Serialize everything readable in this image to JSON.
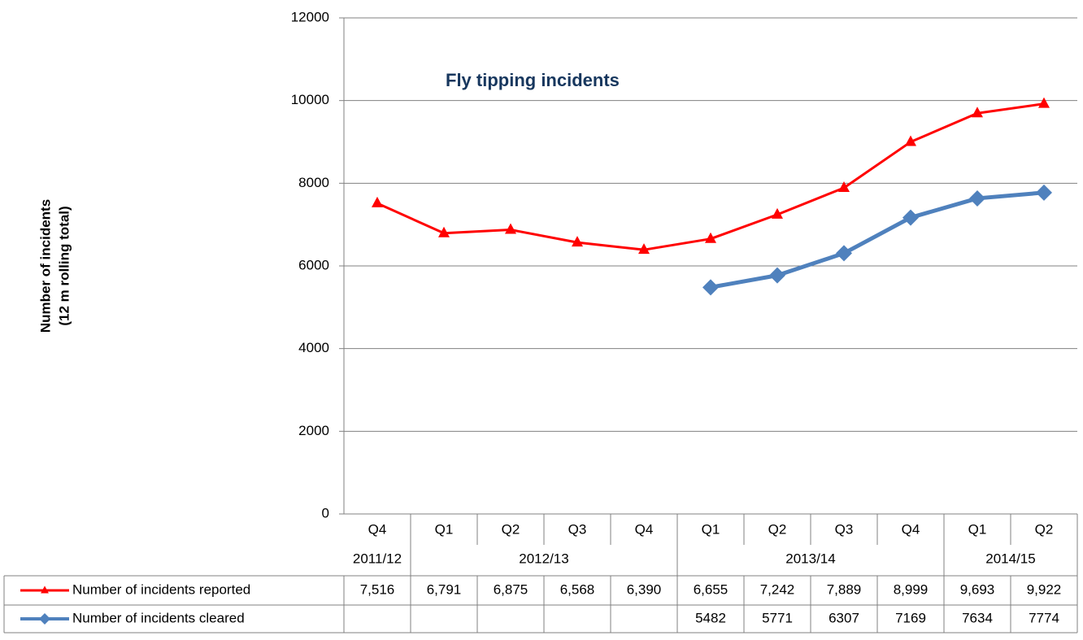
{
  "chart_data": {
    "type": "line",
    "title": "Fly tipping incidents",
    "y_label": [
      "Number of  incidents",
      "(12 m rolling total)"
    ],
    "categories": [
      "Q4",
      "Q1",
      "Q2",
      "Q3",
      "Q4",
      "Q1",
      "Q2",
      "Q3",
      "Q4",
      "Q1",
      "Q2"
    ],
    "groups": [
      {
        "label": "2011/12",
        "count": 1
      },
      {
        "label": "2012/13",
        "count": 4
      },
      {
        "label": "2013/14",
        "count": 4
      },
      {
        "label": "2014/15",
        "count": 2
      }
    ],
    "series": [
      {
        "name": "Number of incidents reported",
        "color": "#ff0000",
        "marker": "triangle",
        "values": [
          7516,
          6791,
          6875,
          6568,
          6390,
          6655,
          7242,
          7889,
          8999,
          9693,
          9922
        ],
        "value_labels": [
          "7,516",
          "6,791",
          "6,875",
          "6,568",
          "6,390",
          "6,655",
          "7,242",
          "7,889",
          "8,999",
          "9,693",
          "9,922"
        ]
      },
      {
        "name": "Number of incidents cleared",
        "color": "#4f81bd",
        "marker": "diamond",
        "values": [
          null,
          null,
          null,
          null,
          null,
          5482,
          5771,
          6307,
          7169,
          7634,
          7774
        ]
      }
    ],
    "ylim": [
      0,
      12000
    ],
    "yticks": [
      0,
      2000,
      4000,
      6000,
      8000,
      10000,
      12000
    ],
    "grid": true
  }
}
